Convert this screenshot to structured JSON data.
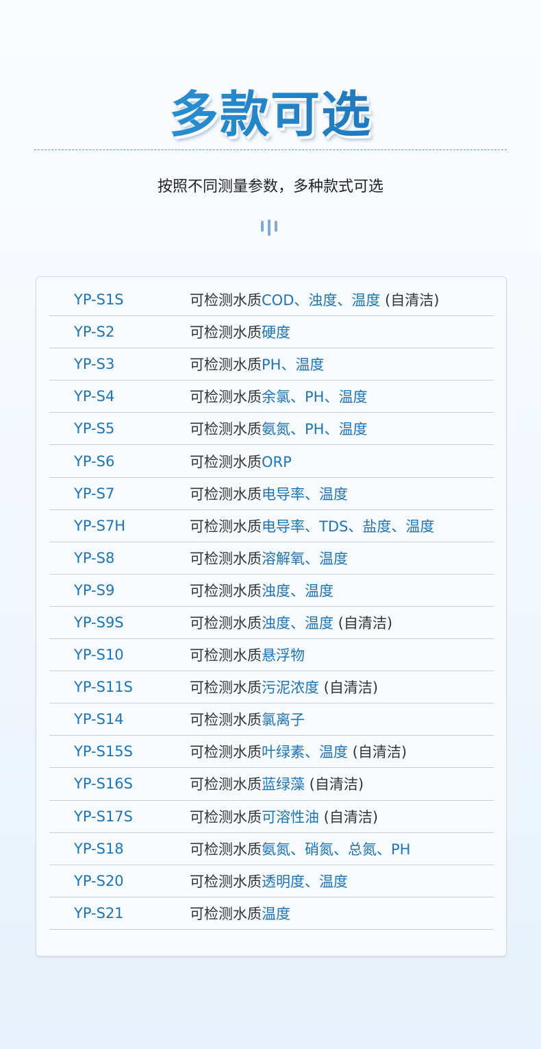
{
  "header": {
    "title": "多款可选",
    "subtitle": "按照不同测量参数，多种款式可选"
  },
  "colors": {
    "accent": "#1c74b8",
    "text": "#333333"
  },
  "table": {
    "prefix": "可检测水质",
    "rows": [
      {
        "model": "YP-S1S",
        "params": "COD、浊度、温度",
        "note": " (自清洁)"
      },
      {
        "model": "YP-S2",
        "params": "硬度",
        "note": ""
      },
      {
        "model": "YP-S3",
        "params": "PH、温度",
        "note": ""
      },
      {
        "model": "YP-S4",
        "params": "余氯、PH、温度",
        "note": ""
      },
      {
        "model": "YP-S5",
        "params": "氨氮、PH、温度",
        "note": ""
      },
      {
        "model": "YP-S6",
        "params": "ORP",
        "note": ""
      },
      {
        "model": "YP-S7",
        "params": "电导率、温度",
        "note": ""
      },
      {
        "model": "YP-S7H",
        "params": "电导率、TDS、盐度、温度",
        "note": ""
      },
      {
        "model": "YP-S8",
        "params": "溶解氧、温度",
        "note": ""
      },
      {
        "model": "YP-S9",
        "params": "浊度、温度",
        "note": ""
      },
      {
        "model": "YP-S9S",
        "params": "浊度、温度",
        "note": " (自清洁)"
      },
      {
        "model": "YP-S10",
        "params": "悬浮物",
        "note": ""
      },
      {
        "model": "YP-S11S",
        "params": "污泥浓度",
        "note": " (自清洁)"
      },
      {
        "model": "YP-S14",
        "params": "氯离子",
        "note": ""
      },
      {
        "model": "YP-S15S",
        "params": "叶绿素、温度",
        "note": " (自清洁)"
      },
      {
        "model": "YP-S16S",
        "params": "蓝绿藻",
        "note": " (自清洁)"
      },
      {
        "model": "YP-S17S",
        "params": "可溶性油",
        "note": " (自清洁)"
      },
      {
        "model": "YP-S18",
        "params": "氨氮、硝氮、总氮、PH",
        "note": ""
      },
      {
        "model": "YP-S20",
        "params": "透明度、温度",
        "note": ""
      },
      {
        "model": "YP-S21",
        "params": "温度",
        "note": ""
      }
    ]
  }
}
